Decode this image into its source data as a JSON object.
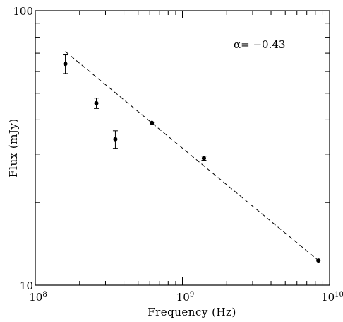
{
  "chart_data": {
    "type": "scatter",
    "title": "",
    "xlabel": "Frequency (Hz)",
    "ylabel": "Flux (mJy)",
    "x_scale": "log",
    "y_scale": "log",
    "xlim": [
      100000000.0,
      10000000000.0
    ],
    "ylim": [
      10,
      100
    ],
    "x_tick_labels": [
      {
        "value": 100000000.0,
        "base": "10",
        "exp": "8"
      },
      {
        "value": 1000000000.0,
        "base": "10",
        "exp": "9"
      },
      {
        "value": 10000000000.0,
        "base": "10",
        "exp": "10"
      }
    ],
    "y_tick_labels": [
      {
        "value": 10,
        "label": "10"
      },
      {
        "value": 100,
        "label": "100"
      }
    ],
    "grid": false,
    "series": [
      {
        "style": "points-with-error-bars",
        "color": "#000000",
        "points": [
          {
            "x": 160000000.0,
            "y": 64,
            "yerr_low": 59,
            "yerr_high": 69
          },
          {
            "x": 260000000.0,
            "y": 46,
            "yerr_low": 44,
            "yerr_high": 48
          },
          {
            "x": 350000000.0,
            "y": 34,
            "yerr_low": 31.5,
            "yerr_high": 36.5
          },
          {
            "x": 620000000.0,
            "y": 39,
            "yerr_low": 39,
            "yerr_high": 39
          },
          {
            "x": 1400000000.0,
            "y": 29,
            "yerr_low": 28.5,
            "yerr_high": 29.5
          },
          {
            "x": 8400000000.0,
            "y": 12.3,
            "yerr_low": 12.3,
            "yerr_high": 12.3
          }
        ]
      },
      {
        "style": "dashed-line",
        "color": "#000000",
        "points": [
          {
            "x": 160000000.0,
            "y": 71
          },
          {
            "x": 8400000000.0,
            "y": 12.3
          }
        ]
      }
    ],
    "annotations": [
      {
        "text": "α= −0.43",
        "x": 2000000000.0,
        "y": 75
      }
    ]
  }
}
